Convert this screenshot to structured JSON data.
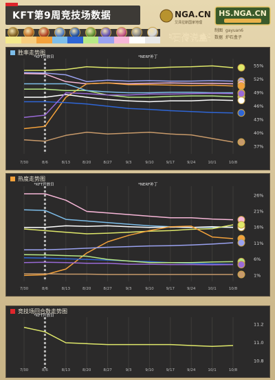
{
  "header": {
    "title": "KFT第9周竞技场数据",
    "logo_nga": "NGA.CN",
    "logo_nga_sub": "艾泽拉斯国家地理",
    "logo_hs": "HS.NGA.CN",
    "logo_box": "炉石传说盒子",
    "credits": {
      "made_label": "制图",
      "made_value": "gayuan6",
      "data_label": "数据",
      "data_value": "炉石盒子"
    }
  },
  "class_strip": {
    "colors": [
      "#f4e98c",
      "#f7cd7e",
      "#f3a13b",
      "#7dbde9",
      "#2f66d6",
      "#b8e986",
      "#9aa2f0",
      "#f7b7d8",
      "#ffffff",
      "#e8e8e8"
    ],
    "icon_colors": [
      "#8a6a2a",
      "#c6732a",
      "#b74a2a",
      "#5c86c8",
      "#2a5aa8",
      "#6a9a3a",
      "#6a58b8",
      "#c85a8a",
      "#8a8a8a",
      "#d8d8d8"
    ]
  },
  "panels": {
    "winrate": {
      "heading": "胜率走势图",
      "event1": "*KFT开放日",
      "event2": "*NERF补丁"
    },
    "popularity": {
      "heading": "热度走势图",
      "event1": "*KFT开放日",
      "event2": "*NERF补丁"
    },
    "rounds": {
      "heading": "竞技场回合数走势图",
      "event1": "*KFT开放日"
    }
  },
  "chart_data": [
    {
      "type": "line",
      "title": "胜率走势图",
      "categories": [
        "7/30",
        "8/6",
        "8/13",
        "8/20",
        "8/27",
        "9/3",
        "9/10",
        "9/17",
        "9/24",
        "10/1",
        "10/8"
      ],
      "yticks": [
        "55%",
        "52%",
        "49%",
        "46%",
        "43%",
        "40%",
        "37%"
      ],
      "ylim": [
        36,
        56
      ],
      "series": [
        {
          "color": "#dfe86a",
          "values": [
            54.0,
            54.0,
            54.2,
            54.8,
            54.6,
            54.5,
            54.5,
            54.7,
            54.8,
            55.0,
            54.6
          ]
        },
        {
          "color": "#9aa2f0",
          "values": [
            53.5,
            53.4,
            53.0,
            51.5,
            51.8,
            51.6,
            51.7,
            51.6,
            51.6,
            51.7,
            51.6
          ]
        },
        {
          "color": "#f7b7d8",
          "values": [
            53.3,
            53.2,
            51.5,
            51.0,
            51.2,
            51.0,
            51.1,
            51.2,
            51.1,
            51.1,
            51.0
          ]
        },
        {
          "color": "#f3a13b",
          "values": [
            41.0,
            41.5,
            48.0,
            51.0,
            51.2,
            50.8,
            50.8,
            50.7,
            50.6,
            50.7,
            50.5
          ]
        },
        {
          "color": "#b8e986",
          "values": [
            49.8,
            49.8,
            49.5,
            49.5,
            48.5,
            48.0,
            48.0,
            48.2,
            48.3,
            48.3,
            48.1
          ]
        },
        {
          "color": "#7dbde9",
          "values": [
            51.0,
            51.0,
            51.0,
            49.5,
            49.2,
            49.0,
            49.0,
            49.1,
            49.1,
            49.0,
            49.0
          ]
        },
        {
          "color": "#2f66d6",
          "values": [
            47.0,
            47.0,
            46.8,
            46.5,
            46.0,
            45.5,
            45.3,
            45.0,
            44.8,
            44.6,
            44.5
          ]
        },
        {
          "color": "#ffffff",
          "values": [
            48.0,
            48.0,
            48.6,
            48.0,
            47.5,
            47.2,
            47.0,
            47.2,
            47.2,
            47.4,
            47.3
          ]
        },
        {
          "color": "#9a6ad8",
          "values": [
            43.5,
            44.0,
            49.0,
            48.8,
            48.5,
            48.5,
            48.7,
            48.7,
            48.8,
            48.9,
            48.8
          ]
        },
        {
          "color": "#c89a6a",
          "values": [
            38.5,
            38.2,
            39.5,
            40.2,
            39.8,
            40.0,
            40.2,
            39.8,
            39.6,
            38.8,
            38.0
          ]
        }
      ]
    },
    {
      "type": "line",
      "title": "热度走势图",
      "categories": [
        "7/30",
        "8/6",
        "8/13",
        "8/20",
        "8/27",
        "9/3",
        "9/10",
        "9/17",
        "9/24",
        "10/1",
        "10/8"
      ],
      "yticks": [
        "26%",
        "21%",
        "16%",
        "11%",
        "6%",
        "1%"
      ],
      "ylim": [
        0,
        28
      ],
      "series": [
        {
          "color": "#f7b7d8",
          "values": [
            26.5,
            26.5,
            24.5,
            21.0,
            20.5,
            20.0,
            19.5,
            19.0,
            19.0,
            18.6,
            18.4
          ]
        },
        {
          "color": "#7dbde9",
          "values": [
            21.5,
            21.3,
            18.5,
            18.0,
            17.5,
            17.0,
            16.5,
            16.2,
            16.0,
            16.0,
            16.1
          ]
        },
        {
          "color": "#ffffff",
          "values": [
            16.0,
            16.0,
            16.5,
            16.3,
            16.5,
            16.2,
            16.0,
            16.1,
            16.0,
            16.2,
            16.0
          ]
        },
        {
          "color": "#dfe86a",
          "values": [
            15.5,
            15.0,
            14.5,
            14.0,
            14.2,
            14.5,
            14.8,
            15.0,
            15.4,
            15.6,
            16.8
          ]
        },
        {
          "color": "#f3a13b",
          "values": [
            1.0,
            1.2,
            3.0,
            8.0,
            11.5,
            13.5,
            15.0,
            16.2,
            16.4,
            13.0,
            12.5
          ]
        },
        {
          "color": "#9aa2f0",
          "values": [
            9.0,
            9.0,
            9.2,
            9.5,
            9.8,
            10.0,
            10.2,
            10.3,
            10.5,
            10.8,
            11.2
          ]
        },
        {
          "color": "#2f66d6",
          "values": [
            6.5,
            6.4,
            6.2,
            6.0,
            5.8,
            5.5,
            5.3,
            5.0,
            4.8,
            4.6,
            4.5
          ]
        },
        {
          "color": "#b8e986",
          "values": [
            7.5,
            7.4,
            7.2,
            7.0,
            6.0,
            5.5,
            5.0,
            5.0,
            5.0,
            5.2,
            5.3
          ]
        },
        {
          "color": "#9a6ad8",
          "values": [
            5.0,
            5.1,
            5.0,
            4.8,
            4.8,
            4.5,
            4.5,
            4.4,
            4.4,
            4.3,
            4.4
          ]
        },
        {
          "color": "#c89a6a",
          "values": [
            1.5,
            1.5,
            1.4,
            1.4,
            1.3,
            1.3,
            1.3,
            1.3,
            1.3,
            1.3,
            1.3
          ]
        }
      ]
    },
    {
      "type": "line",
      "title": "竞技场回合数走势图",
      "categories": [
        "7/30",
        "8/6",
        "8/13",
        "8/20",
        "8/27",
        "9/3",
        "9/10",
        "9/17",
        "9/24",
        "10/1",
        "10/8"
      ],
      "yticks": [
        "11.2",
        "11.0",
        "10.8"
      ],
      "ylim": [
        10.75,
        11.25
      ],
      "series": [
        {
          "color": "#dfe86a",
          "values": [
            11.17,
            11.12,
            11.0,
            10.99,
            10.98,
            10.98,
            10.98,
            10.98,
            10.97,
            10.96,
            10.97
          ]
        }
      ]
    }
  ]
}
